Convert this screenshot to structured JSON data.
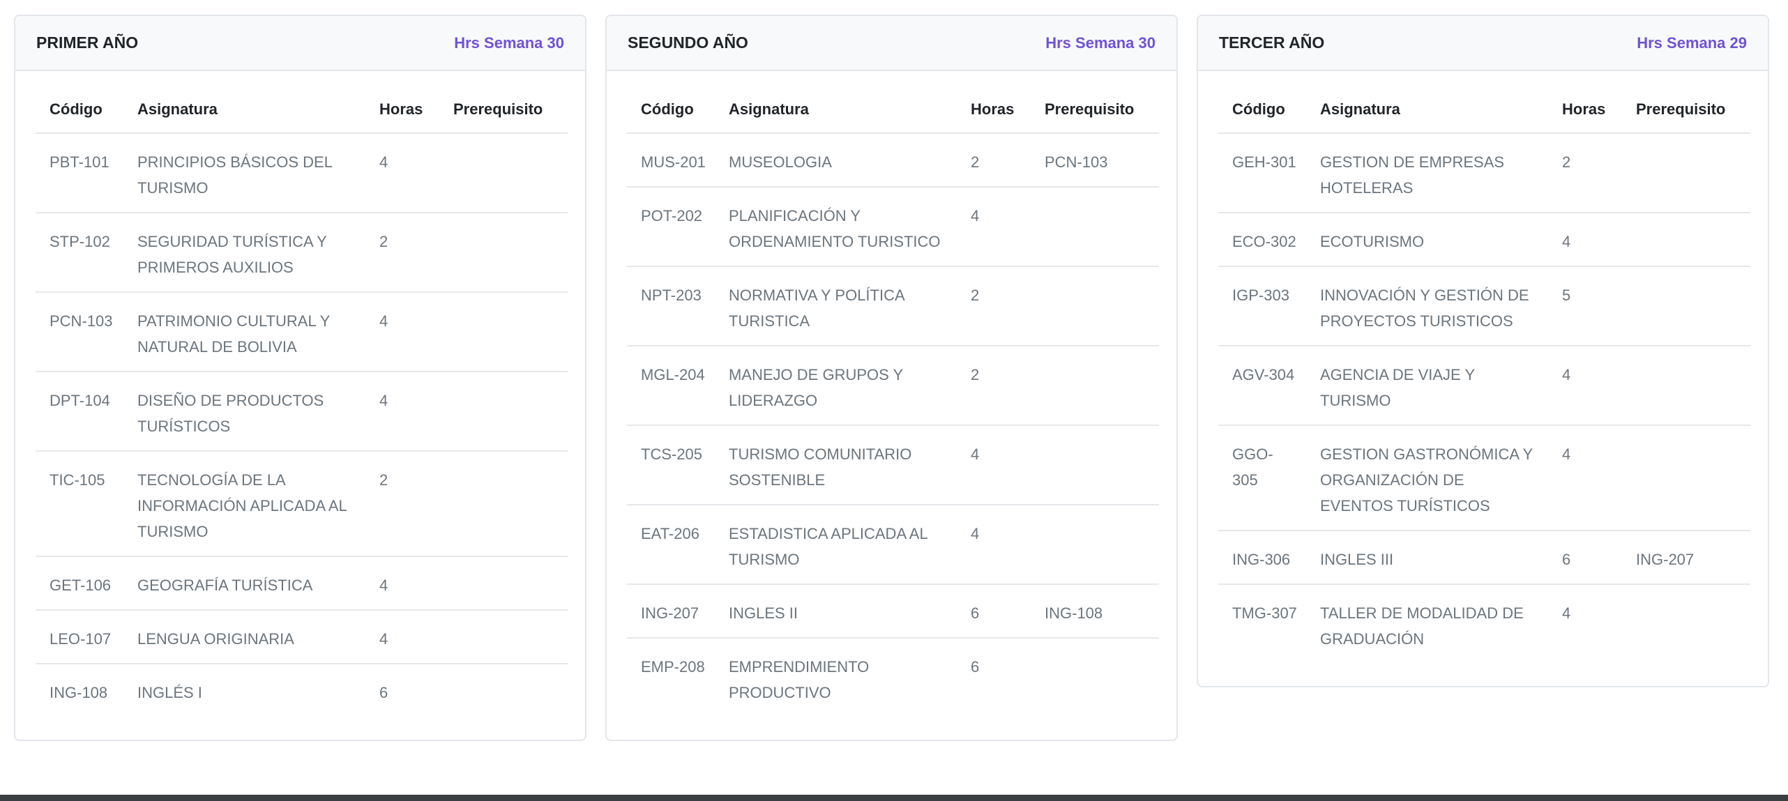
{
  "columns": [
    "Código",
    "Asignatura",
    "Horas",
    "Prerequisito"
  ],
  "years": [
    {
      "title": "PRIMER AÑO",
      "hours": "Hrs Semana 30",
      "rows": [
        {
          "code": "PBT-101",
          "name": "PRINCIPIOS BÁSICOS DEL TURISMO",
          "hours": 4
        },
        {
          "code": "STP-102",
          "name": "SEGURIDAD TURÍSTICA Y PRIMEROS AUXILIOS",
          "hours": 2
        },
        {
          "code": "PCN-103",
          "name": "PATRIMONIO CULTURAL Y NATURAL DE BOLIVIA",
          "hours": 4
        },
        {
          "code": "DPT-104",
          "name": "DISEÑO DE PRODUCTOS TURÍSTICOS",
          "hours": 4
        },
        {
          "code": "TIC-105",
          "name": "TECNOLOGÍA DE LA INFORMACIÓN APLICADA AL TURISMO",
          "hours": 2
        },
        {
          "code": "GET-106",
          "name": "GEOGRAFÍA TURÍSTICA",
          "hours": 4
        },
        {
          "code": "LEO-107",
          "name": "LENGUA ORIGINARIA",
          "hours": 4
        },
        {
          "code": "ING-108",
          "name": "INGLÉS I",
          "hours": 6
        }
      ]
    },
    {
      "title": "SEGUNDO AÑO",
      "hours": "Hrs Semana 30",
      "rows": [
        {
          "code": "MUS-201",
          "name": "MUSEOLOGIA",
          "hours": 2,
          "prereq": "PCN-103"
        },
        {
          "code": "POT-202",
          "name": "PLANIFICACIÓN Y ORDENAMIENTO TURISTICO",
          "hours": 4
        },
        {
          "code": "NPT-203",
          "name": "NORMATIVA Y POLÍTICA TURISTICA",
          "hours": 2
        },
        {
          "code": "MGL-204",
          "name": "MANEJO DE GRUPOS Y LIDERAZGO",
          "hours": 2
        },
        {
          "code": "TCS-205",
          "name": "TURISMO COMUNITARIO SOSTENIBLE",
          "hours": 4
        },
        {
          "code": "EAT-206",
          "name": "ESTADISTICA APLICADA AL TURISMO",
          "hours": 4
        },
        {
          "code": "ING-207",
          "name": "INGLES II",
          "hours": 6,
          "prereq": "ING-108"
        },
        {
          "code": "EMP-208",
          "name": "EMPRENDIMIENTO PRODUCTIVO",
          "hours": 6
        }
      ]
    },
    {
      "title": "TERCER AÑO",
      "hours": "Hrs Semana 29",
      "rows": [
        {
          "code": "GEH-301",
          "name": "GESTION DE EMPRESAS HOTELERAS",
          "hours": 2
        },
        {
          "code": "ECO-302",
          "name": "ECOTURISMO",
          "hours": 4
        },
        {
          "code": "IGP-303",
          "name": "INNOVACIÓN Y GESTIÓN DE PROYECTOS TURISTICOS",
          "hours": 5
        },
        {
          "code": "AGV-304",
          "name": "AGENCIA DE VIAJE Y TURISMO",
          "hours": 4
        },
        {
          "code": "GGO-305",
          "name": "GESTION GASTRONÓMICA Y ORGANIZACIÓN DE EVENTOS TURÍSTICOS",
          "hours": 4
        },
        {
          "code": "ING-306",
          "name": "INGLES III",
          "hours": 6,
          "prereq": "ING-207"
        },
        {
          "code": "TMG-307",
          "name": "TALLER DE MODALIDAD DE GRADUACIÓN",
          "hours": 4
        }
      ]
    }
  ]
}
